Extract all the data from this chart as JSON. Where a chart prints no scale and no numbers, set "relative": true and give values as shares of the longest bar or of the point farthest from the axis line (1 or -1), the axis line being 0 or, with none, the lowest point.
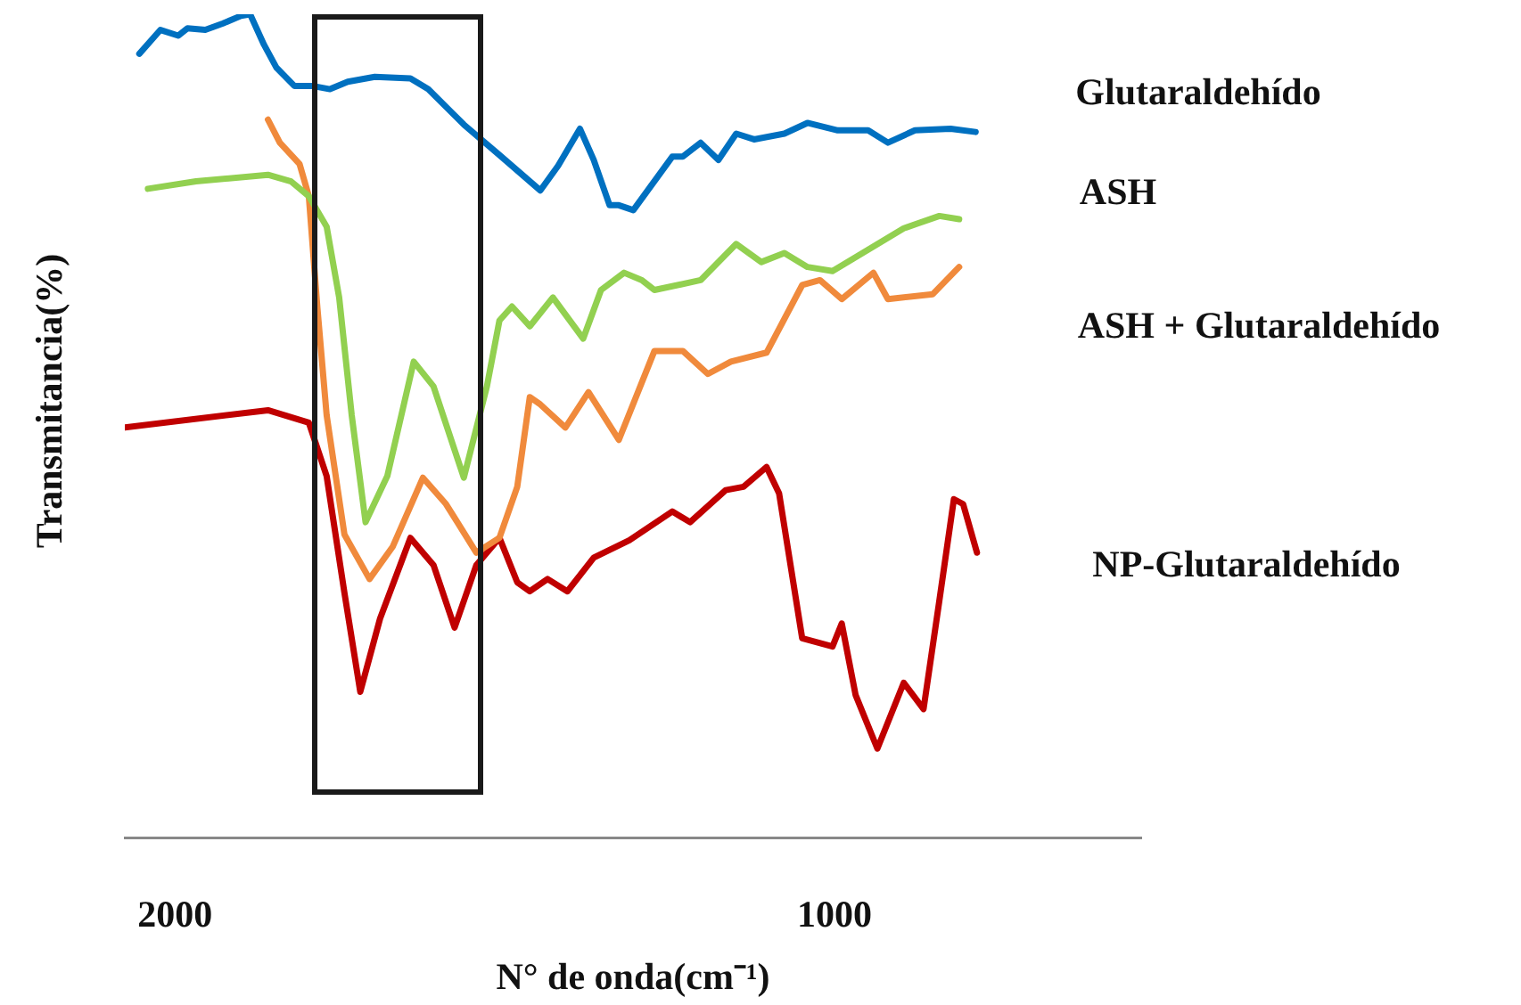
{
  "chart_data": {
    "type": "line",
    "relative": true,
    "xlabel": "N° de onda(cm⁻¹)",
    "ylabel": "Transmitancia(%)",
    "xlim": [
      2076,
      535
    ],
    "xticks": [
      2000,
      1000
    ],
    "grid": false,
    "legend": false,
    "marker": "none",
    "line_style": "solid",
    "series": [
      {
        "name": "Glutaraldehído",
        "color": "#0070c0",
        "x": [
          2054,
          2022,
          1995,
          1981,
          1954,
          1927,
          1900,
          1886,
          1865,
          1846,
          1819,
          1792,
          1765,
          1738,
          1697,
          1643,
          1616,
          1562,
          1508,
          1446,
          1419,
          1386,
          1365,
          1341,
          1327,
          1305,
          1246,
          1230,
          1203,
          1176,
          1149,
          1122,
          1076,
          1041,
          995,
          949,
          919,
          878,
          824,
          786
        ],
        "values": [
          0.952,
          0.981,
          0.974,
          0.983,
          0.981,
          0.989,
          0.998,
          1,
          0.963,
          0.935,
          0.913,
          0.913,
          0.909,
          0.918,
          0.924,
          0.922,
          0.909,
          0.866,
          0.829,
          0.786,
          0.816,
          0.861,
          0.823,
          0.768,
          0.768,
          0.762,
          0.827,
          0.827,
          0.844,
          0.823,
          0.855,
          0.848,
          0.855,
          0.868,
          0.859,
          0.859,
          0.844,
          0.859,
          0.861,
          0.857
        ]
      },
      {
        "name": "ASH",
        "color": "#92d050",
        "x": [
          2041,
          1968,
          1859,
          1824,
          1797,
          1770,
          1751,
          1732,
          1711,
          1678,
          1638,
          1608,
          1562,
          1527,
          1508,
          1489,
          1462,
          1427,
          1381,
          1354,
          1319,
          1292,
          1273,
          1203,
          1149,
          1111,
          1076,
          1041,
          1003,
          949,
          895,
          841,
          811
        ],
        "values": [
          0.788,
          0.797,
          0.805,
          0.797,
          0.779,
          0.742,
          0.656,
          0.513,
          0.383,
          0.439,
          0.578,
          0.548,
          0.437,
          0.548,
          0.628,
          0.645,
          0.621,
          0.656,
          0.606,
          0.665,
          0.686,
          0.677,
          0.665,
          0.677,
          0.721,
          0.699,
          0.71,
          0.693,
          0.688,
          0.714,
          0.74,
          0.755,
          0.751
        ]
      },
      {
        "name": "ASH + Glutaraldehído",
        "color": "#f08a3c",
        "x": [
          1859,
          1841,
          1811,
          1797,
          1784,
          1770,
          1743,
          1705,
          1670,
          1624,
          1589,
          1543,
          1508,
          1481,
          1462,
          1446,
          1408,
          1373,
          1327,
          1273,
          1230,
          1192,
          1157,
          1103,
          1049,
          1022,
          989,
          941,
          919,
          851,
          811
        ],
        "values": [
          0.872,
          0.844,
          0.818,
          0.779,
          0.643,
          0.513,
          0.368,
          0.314,
          0.353,
          0.437,
          0.405,
          0.346,
          0.364,
          0.426,
          0.535,
          0.526,
          0.498,
          0.541,
          0.483,
          0.591,
          0.591,
          0.563,
          0.578,
          0.589,
          0.671,
          0.677,
          0.654,
          0.686,
          0.654,
          0.66,
          0.693
        ]
      },
      {
        "name": "NP-Glutaraldehído",
        "color": "#c00000",
        "x": [
          2076,
          1859,
          1797,
          1770,
          1743,
          1719,
          1689,
          1643,
          1608,
          1576,
          1543,
          1508,
          1481,
          1462,
          1435,
          1405,
          1365,
          1311,
          1246,
          1219,
          1165,
          1138,
          1103,
          1084,
          1049,
          1003,
          989,
          968,
          935,
          895,
          865,
          841,
          819,
          805,
          784
        ],
        "values": [
          0.498,
          0.519,
          0.504,
          0.439,
          0.297,
          0.177,
          0.266,
          0.364,
          0.331,
          0.255,
          0.331,
          0.364,
          0.31,
          0.299,
          0.314,
          0.299,
          0.34,
          0.361,
          0.396,
          0.383,
          0.422,
          0.426,
          0.45,
          0.418,
          0.242,
          0.232,
          0.26,
          0.173,
          0.108,
          0.188,
          0.156,
          0.288,
          0.411,
          0.405,
          0.346
        ]
      }
    ]
  }
}
